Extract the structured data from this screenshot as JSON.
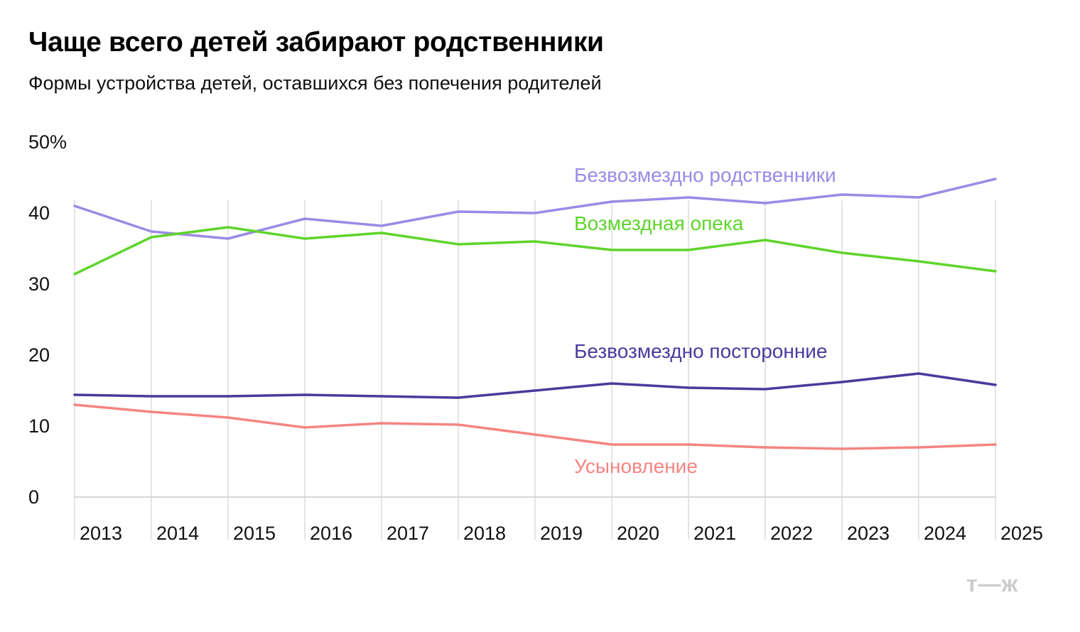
{
  "title": "Чаще всего детей забирают родственники",
  "subtitle": "Формы устройства детей, оставшихся без попечения родителей",
  "logo": "т—ж",
  "chart_data": {
    "type": "line",
    "title": "Чаще всего детей забирают родственники",
    "subtitle": "Формы устройства детей, оставшихся без попечения родителей",
    "x": [
      "2013",
      "2014",
      "2015",
      "2016",
      "2017",
      "2018",
      "2019",
      "2020",
      "2021",
      "2022",
      "2023",
      "2024",
      "2025"
    ],
    "ylim": [
      0,
      50
    ],
    "yticks": [
      0,
      10,
      20,
      30,
      40,
      50
    ],
    "ytick_labels": [
      "0",
      "10",
      "20",
      "30",
      "40",
      "50%"
    ],
    "grid": "vertical",
    "legend": "inline labels",
    "series": [
      {
        "name": "Безвозмездно родственники",
        "color": "#9b8ae6",
        "values": [
          41.0,
          37.4,
          36.4,
          39.2,
          38.2,
          40.2,
          40.0,
          41.6,
          42.2,
          41.4,
          42.6,
          42.2,
          44.8
        ]
      },
      {
        "name": "Возмездная опека",
        "color": "#5fd42c",
        "values": [
          31.4,
          36.6,
          38.0,
          36.4,
          37.2,
          35.6,
          36.0,
          34.8,
          34.8,
          36.2,
          34.4,
          33.2,
          31.8
        ]
      },
      {
        "name": "Безвозмездно посторонние",
        "color": "#4a3a9c",
        "values": [
          14.4,
          14.2,
          14.2,
          14.4,
          14.2,
          14.0,
          15.0,
          16.0,
          15.4,
          15.2,
          16.2,
          17.4,
          15.8
        ]
      },
      {
        "name": "Усыновление",
        "color": "#f48582",
        "values": [
          13.0,
          12.0,
          11.2,
          9.8,
          10.4,
          10.2,
          8.8,
          7.4,
          7.4,
          7.0,
          6.8,
          7.0,
          7.4
        ]
      }
    ]
  }
}
